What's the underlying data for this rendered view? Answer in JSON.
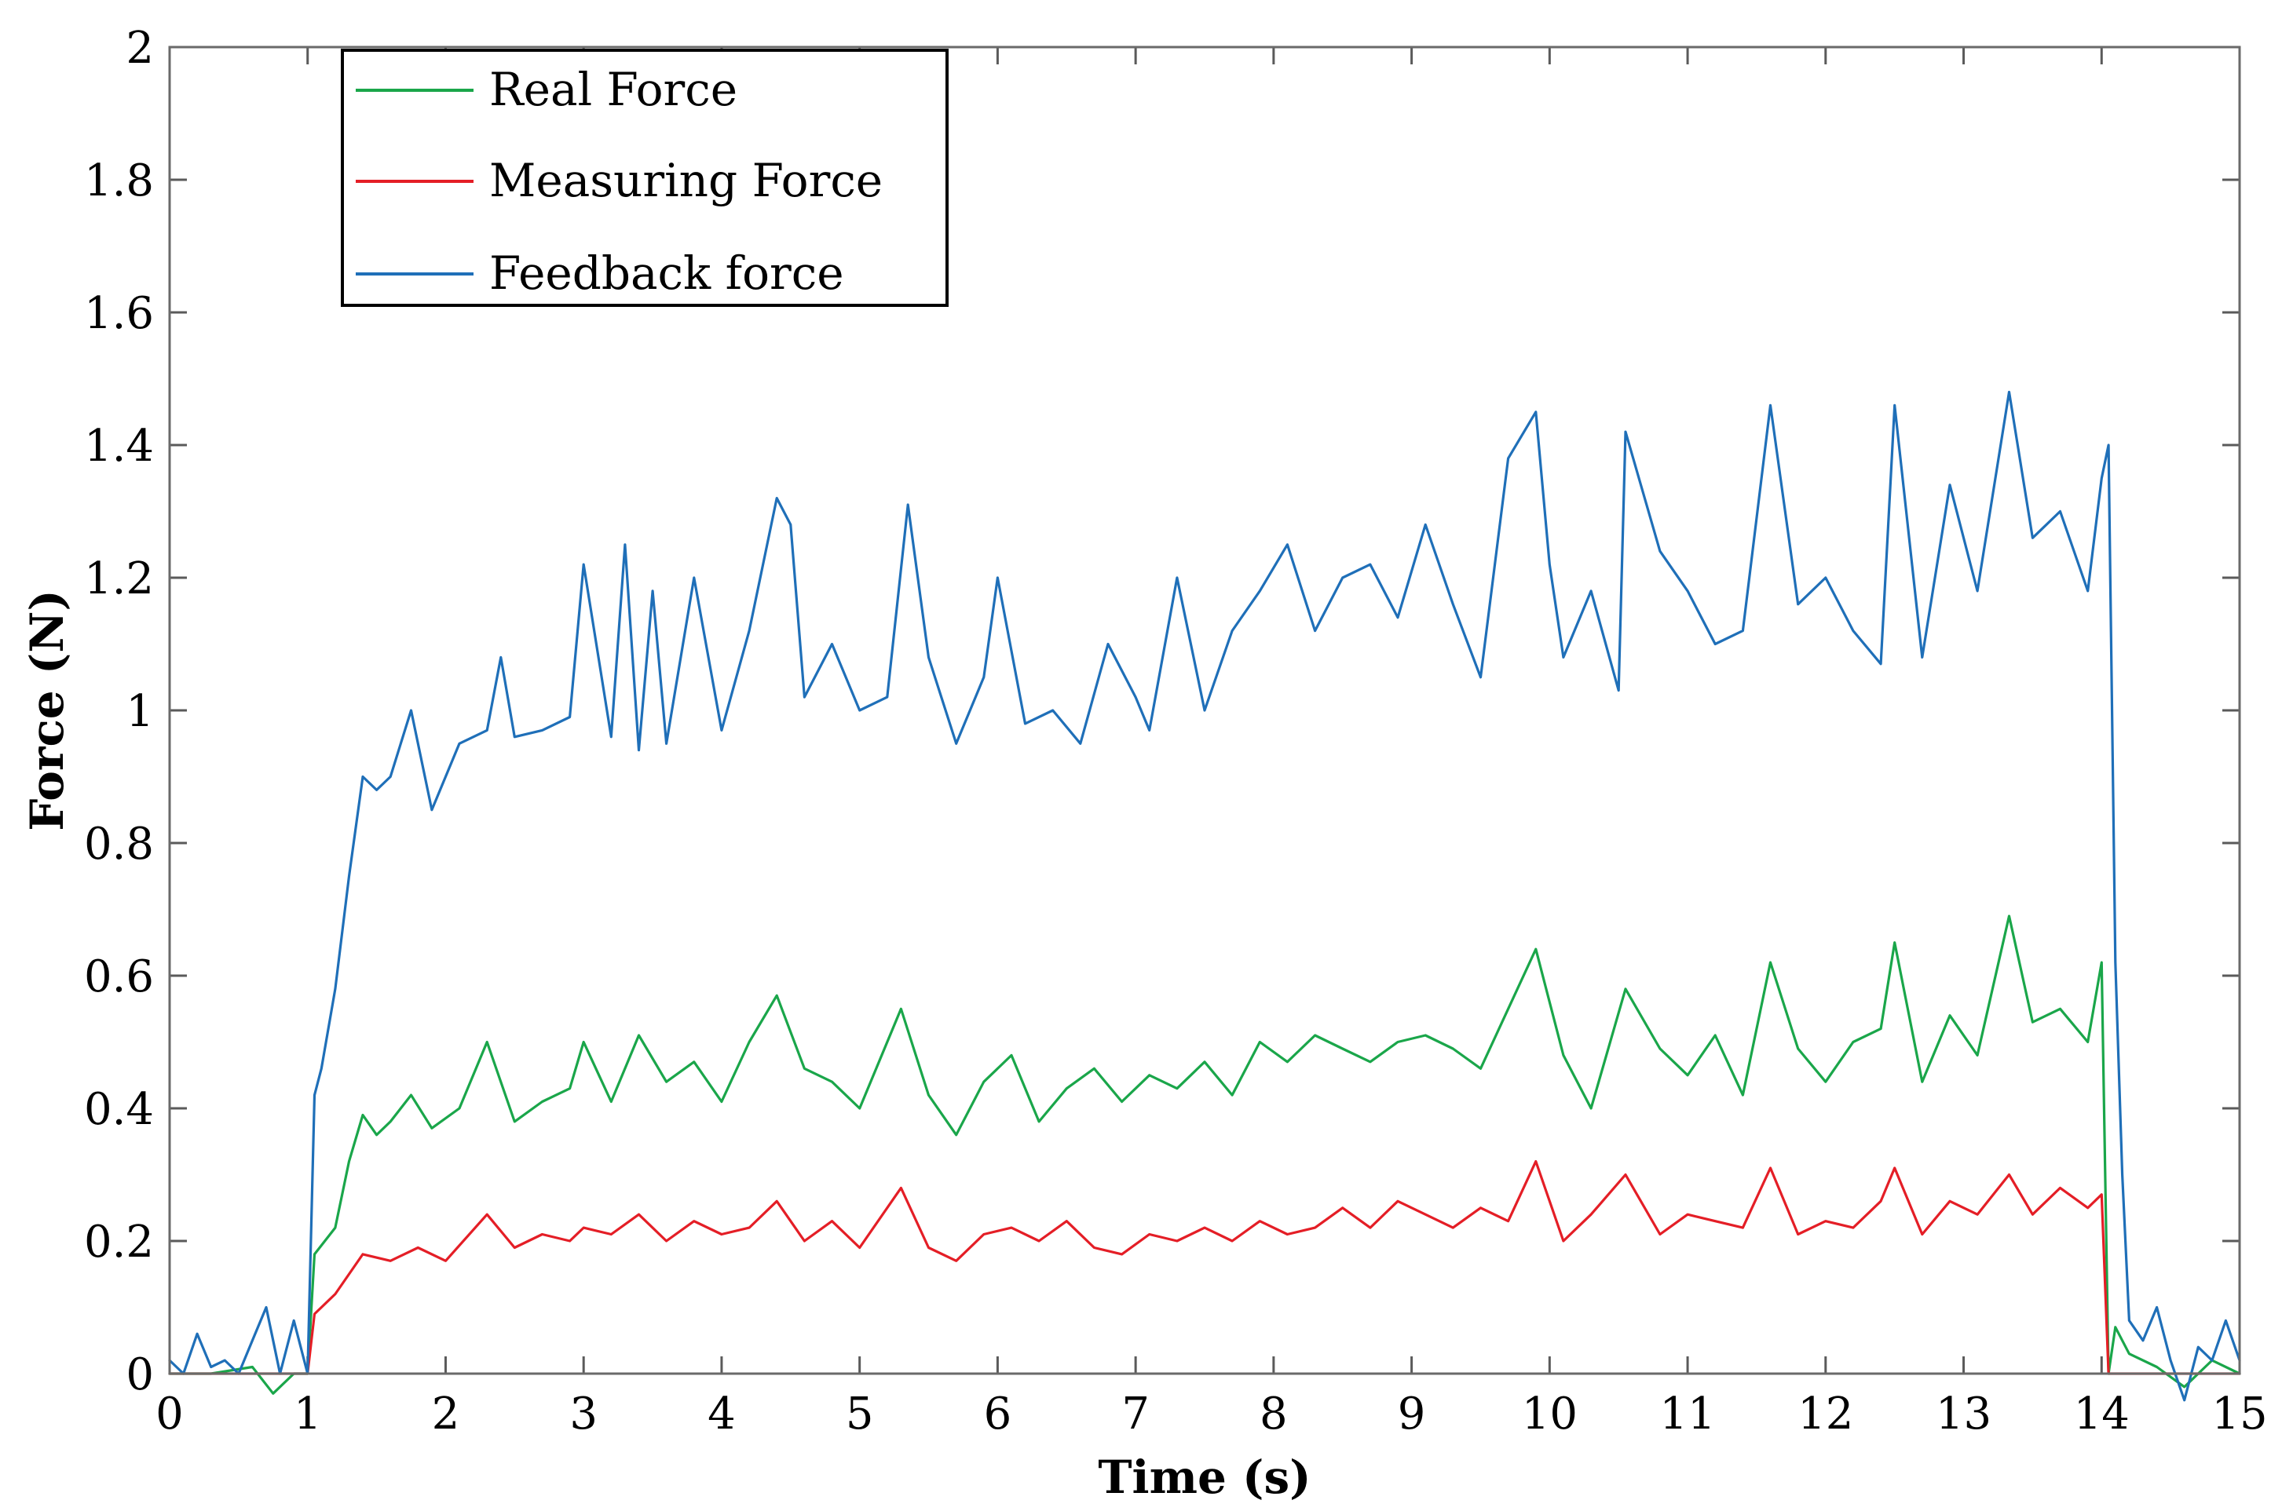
{
  "chart_data": {
    "type": "line",
    "title": "",
    "xlabel": "Time (s)",
    "ylabel": "Force (N)",
    "xlim": [
      0,
      15
    ],
    "ylim": [
      0,
      2
    ],
    "grid": false,
    "legend_position": "top-left",
    "x_ticks": [
      0,
      1,
      2,
      3,
      4,
      5,
      6,
      7,
      8,
      9,
      10,
      11,
      12,
      13,
      14,
      15
    ],
    "x_tick_labels": [
      "0",
      "1",
      "2",
      "3",
      "4",
      "5",
      "6",
      "7",
      "8",
      "9",
      "10",
      "11",
      "12",
      "13",
      "14",
      "15"
    ],
    "y_ticks": [
      0,
      0.2,
      0.4,
      0.6,
      0.8,
      1.0,
      1.2,
      1.4,
      1.6,
      1.8,
      2.0
    ],
    "y_tick_labels": [
      "0",
      "0.2",
      "0.4",
      "0.6",
      "0.8",
      "1",
      "1.2",
      "1.4",
      "1.6",
      "1.8",
      "2"
    ],
    "series": [
      {
        "name": "Real Force",
        "color": "#1aa64a",
        "x": [
          0,
          0.3,
          0.6,
          0.75,
          0.9,
          1.0,
          1.05,
          1.2,
          1.3,
          1.4,
          1.5,
          1.6,
          1.75,
          1.9,
          2.1,
          2.3,
          2.5,
          2.7,
          2.9,
          3.0,
          3.2,
          3.4,
          3.6,
          3.8,
          4.0,
          4.2,
          4.4,
          4.6,
          4.8,
          5.0,
          5.3,
          5.5,
          5.7,
          5.9,
          6.1,
          6.3,
          6.5,
          6.7,
          6.9,
          7.1,
          7.3,
          7.5,
          7.7,
          7.9,
          8.1,
          8.3,
          8.5,
          8.7,
          8.9,
          9.1,
          9.3,
          9.5,
          9.7,
          9.9,
          10.1,
          10.3,
          10.55,
          10.8,
          11.0,
          11.2,
          11.4,
          11.6,
          11.8,
          12.0,
          12.2,
          12.4,
          12.5,
          12.7,
          12.9,
          13.1,
          13.33,
          13.5,
          13.7,
          13.9,
          14.0,
          14.05,
          14.1,
          14.2,
          14.4,
          14.6,
          14.8,
          15.0
        ],
        "values": [
          0.0,
          0.0,
          0.01,
          -0.03,
          0.0,
          0.0,
          0.18,
          0.22,
          0.32,
          0.39,
          0.36,
          0.38,
          0.42,
          0.37,
          0.4,
          0.5,
          0.38,
          0.41,
          0.43,
          0.5,
          0.41,
          0.51,
          0.44,
          0.47,
          0.41,
          0.5,
          0.57,
          0.46,
          0.44,
          0.4,
          0.55,
          0.42,
          0.36,
          0.44,
          0.48,
          0.38,
          0.43,
          0.46,
          0.41,
          0.45,
          0.43,
          0.47,
          0.42,
          0.5,
          0.47,
          0.51,
          0.49,
          0.47,
          0.5,
          0.51,
          0.49,
          0.46,
          0.55,
          0.64,
          0.48,
          0.4,
          0.58,
          0.49,
          0.45,
          0.51,
          0.42,
          0.62,
          0.49,
          0.44,
          0.5,
          0.52,
          0.65,
          0.44,
          0.54,
          0.48,
          0.69,
          0.53,
          0.55,
          0.5,
          0.62,
          0.0,
          0.07,
          0.03,
          0.01,
          -0.02,
          0.02,
          0.0
        ]
      },
      {
        "name": "Measuring Force",
        "color": "#e41e26",
        "x": [
          0,
          0.5,
          1.0,
          1.05,
          1.2,
          1.4,
          1.6,
          1.8,
          2.0,
          2.3,
          2.5,
          2.7,
          2.9,
          3.0,
          3.2,
          3.4,
          3.6,
          3.8,
          4.0,
          4.2,
          4.4,
          4.6,
          4.8,
          5.0,
          5.3,
          5.5,
          5.7,
          5.9,
          6.1,
          6.3,
          6.5,
          6.7,
          6.9,
          7.1,
          7.3,
          7.5,
          7.7,
          7.9,
          8.1,
          8.3,
          8.5,
          8.7,
          8.9,
          9.1,
          9.3,
          9.5,
          9.7,
          9.9,
          10.1,
          10.3,
          10.55,
          10.8,
          11.0,
          11.2,
          11.4,
          11.6,
          11.8,
          12.0,
          12.2,
          12.4,
          12.5,
          12.7,
          12.9,
          13.1,
          13.33,
          13.5,
          13.7,
          13.9,
          14.0,
          14.05,
          14.2,
          14.5,
          15.0
        ],
        "values": [
          0.0,
          0.0,
          0.0,
          0.09,
          0.12,
          0.18,
          0.17,
          0.19,
          0.17,
          0.24,
          0.19,
          0.21,
          0.2,
          0.22,
          0.21,
          0.24,
          0.2,
          0.23,
          0.21,
          0.22,
          0.26,
          0.2,
          0.23,
          0.19,
          0.28,
          0.19,
          0.17,
          0.21,
          0.22,
          0.2,
          0.23,
          0.19,
          0.18,
          0.21,
          0.2,
          0.22,
          0.2,
          0.23,
          0.21,
          0.22,
          0.25,
          0.22,
          0.26,
          0.24,
          0.22,
          0.25,
          0.23,
          0.32,
          0.2,
          0.24,
          0.3,
          0.21,
          0.24,
          0.23,
          0.22,
          0.31,
          0.21,
          0.23,
          0.22,
          0.26,
          0.31,
          0.21,
          0.26,
          0.24,
          0.3,
          0.24,
          0.28,
          0.25,
          0.27,
          0.0,
          0.0,
          0.0,
          0.0
        ]
      },
      {
        "name": "Feedback force",
        "color": "#1f6fb8",
        "x": [
          0,
          0.1,
          0.2,
          0.3,
          0.4,
          0.5,
          0.6,
          0.7,
          0.8,
          0.9,
          1.0,
          1.05,
          1.1,
          1.2,
          1.3,
          1.4,
          1.5,
          1.6,
          1.75,
          1.9,
          2.1,
          2.3,
          2.4,
          2.5,
          2.7,
          2.9,
          3.0,
          3.2,
          3.3,
          3.4,
          3.5,
          3.6,
          3.8,
          4.0,
          4.2,
          4.4,
          4.5,
          4.6,
          4.8,
          5.0,
          5.2,
          5.35,
          5.5,
          5.7,
          5.9,
          6.0,
          6.2,
          6.4,
          6.6,
          6.8,
          7.0,
          7.1,
          7.3,
          7.5,
          7.7,
          7.9,
          8.1,
          8.3,
          8.5,
          8.7,
          8.9,
          9.1,
          9.3,
          9.5,
          9.7,
          9.9,
          10.0,
          10.1,
          10.3,
          10.5,
          10.55,
          10.8,
          11.0,
          11.2,
          11.4,
          11.6,
          11.8,
          12.0,
          12.2,
          12.4,
          12.5,
          12.7,
          12.9,
          13.1,
          13.33,
          13.5,
          13.7,
          13.9,
          14.0,
          14.05,
          14.1,
          14.15,
          14.2,
          14.3,
          14.4,
          14.5,
          14.6,
          14.7,
          14.8,
          14.9,
          15.0
        ],
        "values": [
          0.02,
          0.0,
          0.06,
          0.01,
          0.02,
          0.0,
          0.05,
          0.1,
          0.0,
          0.08,
          0.0,
          0.42,
          0.46,
          0.58,
          0.75,
          0.9,
          0.88,
          0.9,
          1.0,
          0.85,
          0.95,
          0.97,
          1.08,
          0.96,
          0.97,
          0.99,
          1.22,
          0.96,
          1.25,
          0.94,
          1.18,
          0.95,
          1.2,
          0.97,
          1.12,
          1.32,
          1.28,
          1.02,
          1.1,
          1.0,
          1.02,
          1.31,
          1.08,
          0.95,
          1.05,
          1.2,
          0.98,
          1.0,
          0.95,
          1.1,
          1.02,
          0.97,
          1.2,
          1.0,
          1.12,
          1.18,
          1.25,
          1.12,
          1.2,
          1.22,
          1.14,
          1.28,
          1.16,
          1.05,
          1.38,
          1.45,
          1.22,
          1.08,
          1.18,
          1.03,
          1.42,
          1.24,
          1.18,
          1.1,
          1.12,
          1.46,
          1.16,
          1.2,
          1.12,
          1.07,
          1.46,
          1.08,
          1.34,
          1.18,
          1.48,
          1.26,
          1.3,
          1.18,
          1.35,
          1.4,
          0.62,
          0.3,
          0.08,
          0.05,
          0.1,
          0.02,
          -0.04,
          0.04,
          0.02,
          0.08,
          0.02
        ]
      }
    ]
  }
}
